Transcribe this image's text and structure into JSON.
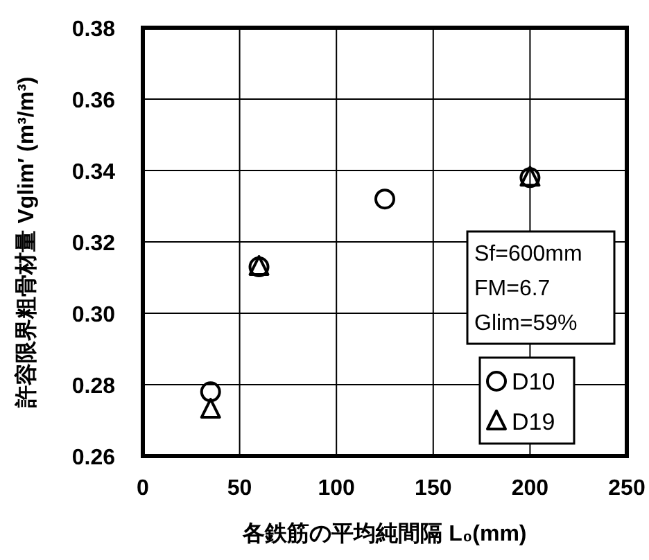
{
  "chart_data": {
    "type": "scatter",
    "xlabel": "各鉄筋の平均純間隔 L₀(mm)",
    "ylabel": "許容限界粗骨材量 Vglim′ (m³/m³)",
    "xlim": [
      0,
      250
    ],
    "xticks": [
      0,
      50,
      100,
      150,
      200,
      250
    ],
    "ylim": [
      0.26,
      0.38
    ],
    "yticks": [
      {
        "value": 0.26,
        "label": "0.26"
      },
      {
        "value": 0.28,
        "label": "0.28"
      },
      {
        "value": 0.3,
        "label": "0.30"
      },
      {
        "value": 0.32,
        "label": "0.32"
      },
      {
        "value": 0.34,
        "label": "0.34"
      },
      {
        "value": 0.36,
        "label": "0.36"
      },
      {
        "value": 0.38,
        "label": "0.38"
      }
    ],
    "grid": true,
    "legend": "bottom right",
    "annotations": [
      "Sf=600mm",
      "FM=6.7",
      "Glim=59%"
    ],
    "series": [
      {
        "name": "D10",
        "color": "#000000",
        "marker": "circle",
        "x": [
          35,
          60,
          125,
          200
        ],
        "values": [
          0.278,
          0.313,
          0.332,
          0.338
        ]
      },
      {
        "name": "D19",
        "color": "#000000",
        "marker": "triangle",
        "x": [
          35,
          60,
          200
        ],
        "values": [
          0.273,
          0.313,
          0.338
        ]
      }
    ]
  }
}
